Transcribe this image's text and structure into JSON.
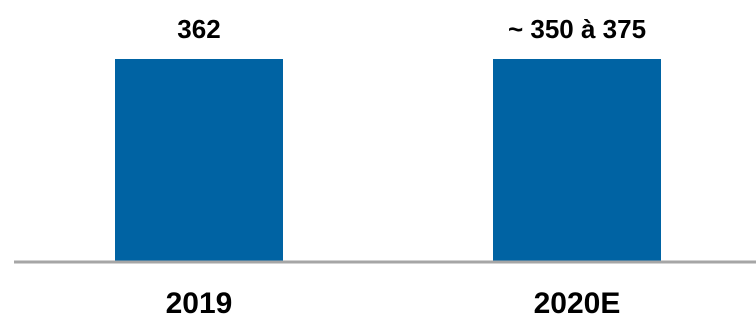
{
  "chart_data": {
    "type": "bar",
    "categories": [
      "2019",
      "2020E"
    ],
    "values": [
      362,
      362
    ],
    "data_labels": [
      "362",
      "~ 350 à 375"
    ],
    "title": "",
    "xlabel": "",
    "ylabel": "",
    "ylim": [
      0,
      362
    ],
    "grid": false,
    "legend": "none",
    "colors": {
      "bar": "#0063A3",
      "axis": "#A6A6A6",
      "text": "#000000"
    }
  }
}
